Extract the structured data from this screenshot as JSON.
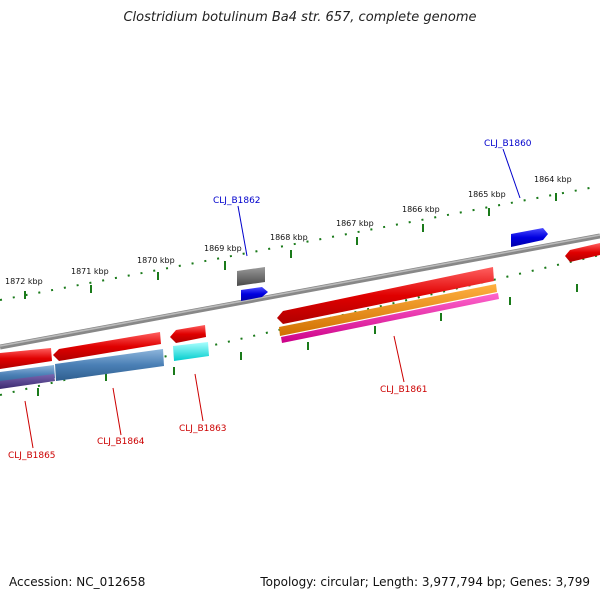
{
  "title": "Clostridium botulinum Ba4 str. 657, complete genome",
  "footer": {
    "accession": "Accession: NC_012658",
    "summary": "Topology: circular; Length: 3,977,794 bp; Genes: 3,799"
  },
  "ruler_labels": [
    "1872 kbp",
    "1871 kbp",
    "1870 kbp",
    "1869 kbp",
    "1868 kbp",
    "1867 kbp",
    "1866 kbp",
    "1865 kbp",
    "1864 kbp"
  ],
  "gene_labels": {
    "b1860": "CLJ_B1860",
    "b1862": "CLJ_B1862",
    "b1861": "CLJ_B1861",
    "b1863": "CLJ_B1863",
    "b1864": "CLJ_B1864",
    "b1865": "CLJ_B1865"
  },
  "colors": {
    "forward_label": "#0000cc",
    "reverse_label": "#cc0000",
    "tick": "#1a7a1a",
    "backbone": "#7a7a7a"
  }
}
